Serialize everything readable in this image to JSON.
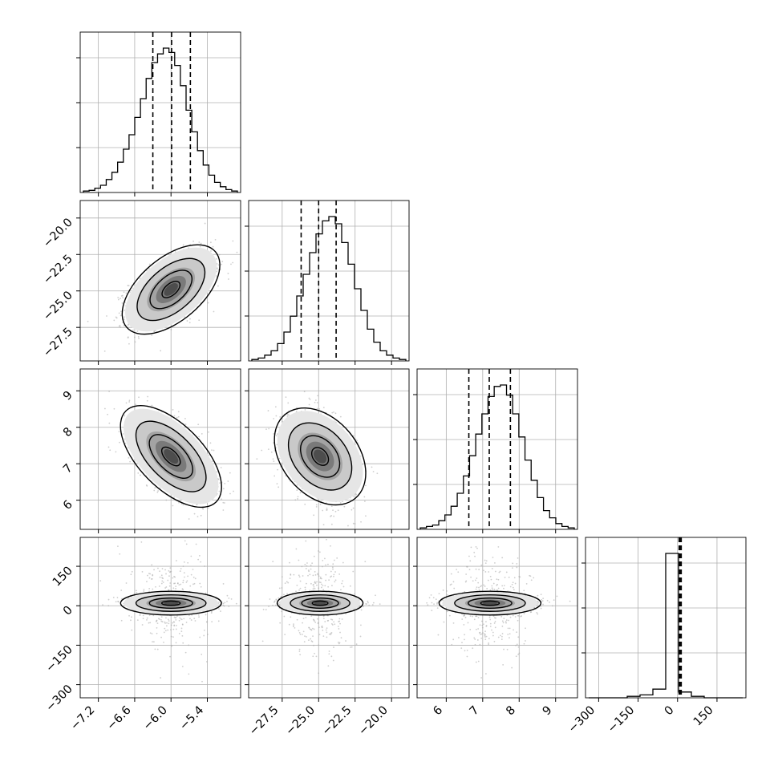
{
  "chart_data": {
    "type": "corner",
    "grid": true,
    "parameters": [
      {
        "range": [
          -7.5,
          -4.85
        ],
        "ticks": [
          -7.2,
          -6.6,
          -6.0,
          -5.4
        ],
        "tick_labels": [
          "−7.2",
          "−6.6",
          "−6.0",
          "−5.4"
        ],
        "quantiles": [
          -6.3,
          -5.99,
          -5.68
        ],
        "center": -6.0,
        "spread": 0.34,
        "hist_density": [
          0.01,
          0.015,
          0.03,
          0.05,
          0.09,
          0.14,
          0.21,
          0.3,
          0.4,
          0.52,
          0.65,
          0.79,
          0.9,
          0.96,
          1.0,
          0.97,
          0.88,
          0.74,
          0.57,
          0.42,
          0.29,
          0.19,
          0.12,
          0.07,
          0.04,
          0.02,
          0.01
        ]
      },
      {
        "range": [
          -29.8,
          -18.8
        ],
        "ticks": [
          -27.5,
          -25.0,
          -22.5,
          -20.0
        ],
        "tick_labels": [
          "−27.5",
          "−25.0",
          "−22.5",
          "−20.0"
        ],
        "quantiles": [
          -26.2,
          -25.0,
          -23.8
        ],
        "center": -24.9,
        "spread": 1.2,
        "hist_density": [
          0.01,
          0.02,
          0.04,
          0.07,
          0.12,
          0.2,
          0.31,
          0.45,
          0.6,
          0.75,
          0.88,
          0.97,
          1.0,
          0.95,
          0.82,
          0.67,
          0.5,
          0.35,
          0.22,
          0.13,
          0.07,
          0.04,
          0.02,
          0.01
        ]
      },
      {
        "range": [
          5.2,
          9.6
        ],
        "ticks": [
          6,
          7,
          8,
          9
        ],
        "tick_labels": [
          "6",
          "7",
          "8",
          "9"
        ],
        "quantiles": [
          6.62,
          7.18,
          7.76
        ],
        "center": 7.2,
        "spread": 0.57,
        "hist_density": [
          0.01,
          0.02,
          0.03,
          0.06,
          0.1,
          0.16,
          0.25,
          0.37,
          0.51,
          0.66,
          0.8,
          0.92,
          0.99,
          1.0,
          0.93,
          0.8,
          0.64,
          0.48,
          0.34,
          0.22,
          0.13,
          0.08,
          0.04,
          0.02,
          0.01
        ]
      },
      {
        "range": [
          -350,
          260
        ],
        "ticks": [
          -300,
          -150,
          0,
          150
        ],
        "tick_labels": [
          "−300",
          "−150",
          "0",
          "150"
        ],
        "quantiles": [
          6,
          10,
          14
        ],
        "center": 10,
        "spread": 7,
        "hist_density": [
          0.0,
          0.0,
          0.0,
          0.01,
          0.02,
          0.06,
          1.0,
          0.04,
          0.01,
          0.0,
          0.0,
          0.0
        ]
      }
    ],
    "pairs": [
      {
        "x_param": 0,
        "y_param": 1,
        "correlation": 0.55
      },
      {
        "x_param": 0,
        "y_param": 2,
        "correlation": -0.6
      },
      {
        "x_param": 1,
        "y_param": 2,
        "correlation": -0.35
      },
      {
        "x_param": 0,
        "y_param": 3,
        "correlation": 0.0
      },
      {
        "x_param": 1,
        "y_param": 3,
        "correlation": 0.0
      },
      {
        "x_param": 2,
        "y_param": 3,
        "correlation": 0.0
      }
    ],
    "colors": {
      "line": "#000000",
      "grid": "#b0b0b0",
      "points": "#a6a6a6",
      "background": "#ffffff"
    }
  }
}
